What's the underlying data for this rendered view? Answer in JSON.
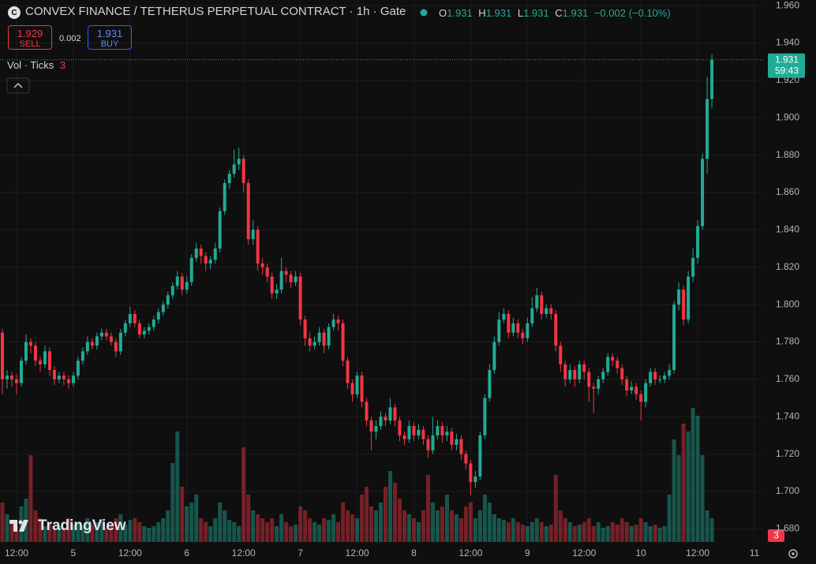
{
  "chart_data": {
    "type": "candlestick",
    "symbol": "CONVEX FINANCE / TETHERUS PERPETUAL CONTRACT",
    "interval": "1h",
    "exchange": "Gate",
    "ohlc_legend": {
      "o_label": "O",
      "o": 1.931,
      "h_label": "H",
      "h": 1.931,
      "l_label": "L",
      "l": 1.931,
      "c_label": "C",
      "c": 1.931,
      "change": "−0.002 (−0.10%)"
    },
    "trade": {
      "sell_price": 1.929,
      "sell_label": "SELL",
      "spread": 0.002,
      "buy_price": 1.931,
      "buy_label": "BUY"
    },
    "indicator": {
      "name": "Vol · Ticks",
      "value": "3"
    },
    "last_price": 1.931,
    "countdown": "59:43",
    "events_badge": "3",
    "logo": "TradingView",
    "up_color": "#22ab94",
    "down_color": "#f23645",
    "grid": true,
    "xlim": [
      -0.5,
      161
    ],
    "xticks": [
      {
        "value": 3,
        "label": "12:00"
      },
      {
        "value": 15,
        "label": "5"
      },
      {
        "value": 27,
        "label": "12:00"
      },
      {
        "value": 39,
        "label": "6"
      },
      {
        "value": 51,
        "label": "12:00"
      },
      {
        "value": 63,
        "label": "7"
      },
      {
        "value": 75,
        "label": "12:00"
      },
      {
        "value": 87,
        "label": "8"
      },
      {
        "value": 99,
        "label": "12:00"
      },
      {
        "value": 111,
        "label": "9"
      },
      {
        "value": 123,
        "label": "12:00"
      },
      {
        "value": 135,
        "label": "10"
      },
      {
        "value": 147,
        "label": "12:00"
      },
      {
        "value": 159,
        "label": "11"
      }
    ],
    "ylim": [
      1.673,
      1.963
    ],
    "yticks": [
      {
        "value": 1.68,
        "label": "1.680"
      },
      {
        "value": 1.7,
        "label": "1.700"
      },
      {
        "value": 1.72,
        "label": "1.720"
      },
      {
        "value": 1.74,
        "label": "1.740"
      },
      {
        "value": 1.76,
        "label": "1.760"
      },
      {
        "value": 1.78,
        "label": "1.780"
      },
      {
        "value": 1.8,
        "label": "1.800"
      },
      {
        "value": 1.82,
        "label": "1.820"
      },
      {
        "value": 1.84,
        "label": "1.840"
      },
      {
        "value": 1.86,
        "label": "1.860"
      },
      {
        "value": 1.88,
        "label": "1.880"
      },
      {
        "value": 1.9,
        "label": "1.900"
      },
      {
        "value": 1.92,
        "label": "1.920"
      },
      {
        "value": 1.94,
        "label": "1.940"
      },
      {
        "value": 1.96,
        "label": "1.960"
      }
    ],
    "volume_ylim": [
      0,
      200
    ],
    "open": [
      1.785,
      1.76,
      1.762,
      1.76,
      1.758,
      1.77,
      1.78,
      1.778,
      1.77,
      1.768,
      1.775,
      1.765,
      1.76,
      1.762,
      1.76,
      1.758,
      1.762,
      1.77,
      1.775,
      1.78,
      1.778,
      1.783,
      1.785,
      1.783,
      1.78,
      1.775,
      1.785,
      1.79,
      1.795,
      1.79,
      1.784,
      1.786,
      1.788,
      1.792,
      1.796,
      1.8,
      1.805,
      1.81,
      1.815,
      1.808,
      1.812,
      1.825,
      1.83,
      1.826,
      1.822,
      1.824,
      1.83,
      1.85,
      1.865,
      1.87,
      1.875,
      1.878,
      1.865,
      1.835,
      1.84,
      1.822,
      1.82,
      1.815,
      1.806,
      1.808,
      1.818,
      1.816,
      1.812,
      1.815,
      1.792,
      1.782,
      1.778,
      1.78,
      1.785,
      1.778,
      1.788,
      1.792,
      1.79,
      1.77,
      1.758,
      1.752,
      1.762,
      1.748,
      1.738,
      1.732,
      1.735,
      1.74,
      1.738,
      1.745,
      1.738,
      1.73,
      1.728,
      1.735,
      1.73,
      1.733,
      1.728,
      1.722,
      1.73,
      1.735,
      1.73,
      1.732,
      1.725,
      1.728,
      1.72,
      1.715,
      1.705,
      1.708,
      1.73,
      1.75,
      1.765,
      1.78,
      1.792,
      1.795,
      1.785,
      1.79,
      1.785,
      1.782,
      1.79,
      1.798,
      1.805,
      1.795,
      1.798,
      1.795,
      1.778,
      1.768,
      1.76,
      1.765,
      1.76,
      1.768,
      1.764,
      1.756,
      1.755,
      1.76,
      1.764,
      1.772,
      1.77,
      1.766,
      1.76,
      1.754,
      1.756,
      1.752,
      1.748,
      1.758,
      1.764,
      1.76,
      1.76,
      1.762,
      1.765,
      1.8,
      1.808,
      1.792,
      1.815,
      1.825,
      1.842,
      1.878,
      1.91
    ],
    "high": [
      1.787,
      1.765,
      1.764,
      1.763,
      1.772,
      1.784,
      1.782,
      1.78,
      1.772,
      1.778,
      1.777,
      1.767,
      1.764,
      1.764,
      1.762,
      1.764,
      1.772,
      1.777,
      1.783,
      1.782,
      1.785,
      1.787,
      1.787,
      1.785,
      1.782,
      1.787,
      1.792,
      1.799,
      1.797,
      1.792,
      1.788,
      1.79,
      1.794,
      1.798,
      1.802,
      1.807,
      1.812,
      1.818,
      1.817,
      1.815,
      1.827,
      1.833,
      1.832,
      1.828,
      1.826,
      1.833,
      1.852,
      1.867,
      1.872,
      1.883,
      1.884,
      1.88,
      1.867,
      1.845,
      1.842,
      1.825,
      1.822,
      1.817,
      1.811,
      1.825,
      1.82,
      1.818,
      1.818,
      1.817,
      1.794,
      1.785,
      1.783,
      1.788,
      1.787,
      1.79,
      1.795,
      1.794,
      1.792,
      1.772,
      1.76,
      1.764,
      1.764,
      1.75,
      1.74,
      1.738,
      1.743,
      1.742,
      1.75,
      1.747,
      1.74,
      1.732,
      1.738,
      1.737,
      1.736,
      1.735,
      1.73,
      1.74,
      1.738,
      1.737,
      1.735,
      1.734,
      1.731,
      1.73,
      1.722,
      1.717,
      1.711,
      1.732,
      1.752,
      1.768,
      1.783,
      1.796,
      1.798,
      1.797,
      1.793,
      1.792,
      1.787,
      1.793,
      1.804,
      1.809,
      1.807,
      1.8,
      1.8,
      1.797,
      1.78,
      1.77,
      1.768,
      1.767,
      1.77,
      1.77,
      1.766,
      1.758,
      1.762,
      1.766,
      1.774,
      1.774,
      1.772,
      1.768,
      1.762,
      1.759,
      1.758,
      1.754,
      1.76,
      1.766,
      1.766,
      1.762,
      1.764,
      1.768,
      1.802,
      1.812,
      1.81,
      1.818,
      1.83,
      1.845,
      1.881,
      1.922,
      1.934
    ],
    "low": [
      1.752,
      1.755,
      1.756,
      1.752,
      1.756,
      1.768,
      1.774,
      1.767,
      1.764,
      1.766,
      1.762,
      1.757,
      1.758,
      1.757,
      1.755,
      1.756,
      1.76,
      1.768,
      1.773,
      1.776,
      1.776,
      1.781,
      1.781,
      1.778,
      1.772,
      1.773,
      1.783,
      1.788,
      1.788,
      1.782,
      1.782,
      1.784,
      1.786,
      1.79,
      1.794,
      1.798,
      1.803,
      1.808,
      1.805,
      1.806,
      1.81,
      1.823,
      1.822,
      1.818,
      1.819,
      1.822,
      1.828,
      1.848,
      1.862,
      1.868,
      1.872,
      1.86,
      1.832,
      1.832,
      1.818,
      1.816,
      1.812,
      1.803,
      1.803,
      1.806,
      1.812,
      1.809,
      1.81,
      1.789,
      1.778,
      1.775,
      1.776,
      1.778,
      1.774,
      1.776,
      1.786,
      1.786,
      1.767,
      1.755,
      1.748,
      1.75,
      1.745,
      1.735,
      1.722,
      1.728,
      1.733,
      1.735,
      1.736,
      1.735,
      1.727,
      1.725,
      1.726,
      1.727,
      1.728,
      1.725,
      1.718,
      1.72,
      1.728,
      1.726,
      1.727,
      1.722,
      1.722,
      1.717,
      1.712,
      1.698,
      1.702,
      1.706,
      1.728,
      1.748,
      1.763,
      1.778,
      1.79,
      1.782,
      1.783,
      1.782,
      1.779,
      1.78,
      1.788,
      1.796,
      1.792,
      1.793,
      1.792,
      1.775,
      1.764,
      1.756,
      1.758,
      1.756,
      1.758,
      1.76,
      1.748,
      1.742,
      1.752,
      1.758,
      1.762,
      1.767,
      1.763,
      1.757,
      1.751,
      1.752,
      1.749,
      1.738,
      1.745,
      1.756,
      1.757,
      1.758,
      1.758,
      1.76,
      1.763,
      1.797,
      1.789,
      1.79,
      1.812,
      1.822,
      1.84,
      1.87,
      1.905
    ],
    "close": [
      1.76,
      1.762,
      1.76,
      1.758,
      1.77,
      1.78,
      1.778,
      1.77,
      1.768,
      1.775,
      1.765,
      1.76,
      1.762,
      1.76,
      1.758,
      1.762,
      1.77,
      1.775,
      1.78,
      1.778,
      1.783,
      1.785,
      1.783,
      1.78,
      1.775,
      1.785,
      1.79,
      1.795,
      1.79,
      1.784,
      1.786,
      1.788,
      1.792,
      1.796,
      1.8,
      1.805,
      1.81,
      1.815,
      1.808,
      1.812,
      1.825,
      1.83,
      1.826,
      1.822,
      1.824,
      1.83,
      1.85,
      1.865,
      1.87,
      1.875,
      1.878,
      1.865,
      1.835,
      1.84,
      1.822,
      1.82,
      1.815,
      1.806,
      1.808,
      1.818,
      1.816,
      1.812,
      1.815,
      1.792,
      1.782,
      1.778,
      1.78,
      1.785,
      1.778,
      1.788,
      1.792,
      1.79,
      1.77,
      1.758,
      1.752,
      1.762,
      1.748,
      1.738,
      1.732,
      1.735,
      1.74,
      1.738,
      1.745,
      1.738,
      1.73,
      1.728,
      1.735,
      1.73,
      1.733,
      1.728,
      1.722,
      1.73,
      1.735,
      1.73,
      1.732,
      1.725,
      1.728,
      1.72,
      1.715,
      1.705,
      1.708,
      1.73,
      1.75,
      1.765,
      1.78,
      1.792,
      1.795,
      1.785,
      1.79,
      1.785,
      1.782,
      1.79,
      1.798,
      1.805,
      1.795,
      1.798,
      1.795,
      1.778,
      1.768,
      1.76,
      1.765,
      1.76,
      1.768,
      1.764,
      1.756,
      1.755,
      1.76,
      1.764,
      1.772,
      1.77,
      1.766,
      1.76,
      1.754,
      1.756,
      1.752,
      1.748,
      1.758,
      1.764,
      1.76,
      1.76,
      1.762,
      1.765,
      1.8,
      1.808,
      1.792,
      1.815,
      1.825,
      1.842,
      1.878,
      1.91,
      1.931
    ],
    "volume": [
      50,
      35,
      25,
      20,
      45,
      55,
      110,
      40,
      30,
      20,
      25,
      15,
      20,
      18,
      30,
      22,
      25,
      20,
      30,
      22,
      25,
      28,
      18,
      20,
      30,
      35,
      22,
      28,
      30,
      25,
      20,
      18,
      20,
      25,
      30,
      40,
      100,
      140,
      70,
      45,
      50,
      60,
      30,
      25,
      20,
      30,
      50,
      40,
      28,
      25,
      20,
      120,
      60,
      40,
      35,
      30,
      25,
      30,
      20,
      35,
      25,
      20,
      22,
      45,
      40,
      30,
      25,
      22,
      30,
      28,
      35,
      25,
      50,
      40,
      35,
      30,
      60,
      70,
      45,
      40,
      50,
      70,
      90,
      75,
      55,
      40,
      35,
      30,
      25,
      40,
      85,
      50,
      40,
      45,
      60,
      40,
      35,
      30,
      45,
      50,
      30,
      40,
      60,
      50,
      35,
      30,
      28,
      25,
      30,
      25,
      22,
      20,
      25,
      30,
      25,
      20,
      22,
      85,
      40,
      30,
      25,
      20,
      22,
      25,
      30,
      20,
      25,
      18,
      20,
      25,
      22,
      30,
      25,
      20,
      22,
      30,
      25,
      20,
      22,
      18,
      20,
      60,
      130,
      110,
      150,
      140,
      170,
      160,
      110,
      40,
      30
    ]
  }
}
